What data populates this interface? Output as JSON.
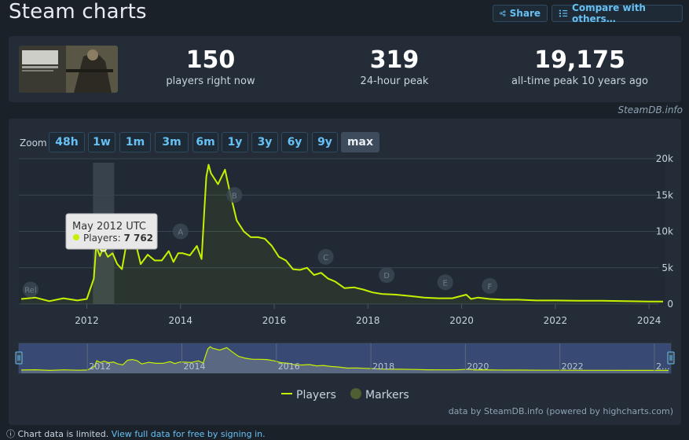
{
  "header": {
    "title": "Steam charts",
    "share_label": "Share",
    "compare_label": "Compare with others…"
  },
  "stats": {
    "current": {
      "value": "150",
      "label": "players right now"
    },
    "peak24": {
      "value": "319",
      "label": "24-hour peak"
    },
    "alltime": {
      "value": "19,175",
      "label": "all-time peak 10 years ago"
    }
  },
  "credit": "SteamDB.info",
  "zoom": {
    "label": "Zoom",
    "buttons": [
      "48h",
      "1w",
      "1m",
      "3m",
      "6m",
      "1y",
      "3y",
      "6y",
      "9y",
      "max"
    ],
    "active": "max"
  },
  "tooltip": {
    "title": "May 2012 UTC",
    "series_label": "Players: ",
    "value": "7 762"
  },
  "legend": {
    "players": "Players",
    "markers": "Markers"
  },
  "footer_credit": "data by SteamDB.info (powered by highcharts.com)",
  "bottom_note": {
    "prefix": "Chart data is limited.",
    "link": "View full data for free by signing in."
  },
  "colors": {
    "players": "#c6f000",
    "markers": "#4f5f31",
    "accent": "#66c0f4"
  },
  "chart_data": {
    "type": "line",
    "series": [
      {
        "name": "Players",
        "x": [
          2010.6,
          2010.9,
          2011.2,
          2011.5,
          2011.8,
          2012.0,
          2012.15,
          2012.2,
          2012.28,
          2012.35,
          2012.45,
          2012.55,
          2012.65,
          2012.75,
          2012.85,
          2012.95,
          2013.05,
          2013.15,
          2013.3,
          2013.45,
          2013.6,
          2013.75,
          2013.85,
          2013.95,
          2014.05,
          2014.2,
          2014.35,
          2014.45,
          2014.5,
          2014.55,
          2014.6,
          2014.65,
          2014.8,
          2014.95,
          2015.05,
          2015.2,
          2015.35,
          2015.5,
          2015.65,
          2015.8,
          2015.95,
          2016.1,
          2016.25,
          2016.4,
          2016.55,
          2016.7,
          2016.85,
          2017.0,
          2017.15,
          2017.3,
          2017.5,
          2017.7,
          2017.9,
          2018.1,
          2018.3,
          2018.6,
          2018.9,
          2019.2,
          2019.5,
          2019.8,
          2020.1,
          2020.2,
          2020.35,
          2020.6,
          2020.9,
          2021.2,
          2021.6,
          2022.0,
          2022.5,
          2023.0,
          2023.5,
          2024.0,
          2024.3
        ],
        "values": [
          700,
          900,
          400,
          800,
          500,
          700,
          3500,
          8000,
          6600,
          7762,
          6500,
          7000,
          5500,
          4800,
          8500,
          9000,
          8200,
          5500,
          6800,
          6000,
          6000,
          7300,
          5800,
          7000,
          7000,
          6700,
          8000,
          6200,
          12000,
          17500,
          19175,
          18000,
          16500,
          18500,
          15500,
          11500,
          10000,
          9200,
          9200,
          9000,
          8000,
          6500,
          6000,
          4800,
          4700,
          5000,
          4000,
          4300,
          3500,
          3100,
          2200,
          2300,
          2000,
          1600,
          1400,
          1300,
          1100,
          900,
          800,
          800,
          1300,
          700,
          900,
          700,
          600,
          600,
          500,
          500,
          450,
          450,
          400,
          350,
          350
        ]
      }
    ],
    "markers": [
      {
        "label": "Rel",
        "x": 2010.8,
        "y": 2000
      },
      {
        "label": "A",
        "x": 2014.0,
        "y": 10000
      },
      {
        "label": "B",
        "x": 2015.15,
        "y": 15000
      },
      {
        "label": "C",
        "x": 2017.1,
        "y": 6500
      },
      {
        "label": "D",
        "x": 2018.4,
        "y": 4000
      },
      {
        "label": "E",
        "x": 2019.65,
        "y": 3000
      },
      {
        "label": "F",
        "x": 2020.6,
        "y": 2500
      }
    ],
    "x_ticks": [
      "2012",
      "2014",
      "2016",
      "2018",
      "2020",
      "2022",
      "2024"
    ],
    "y_ticks": [
      "0",
      "5k",
      "10k",
      "15k",
      "20k"
    ],
    "xlim": [
      2010.55,
      2024.35
    ],
    "ylim": [
      0,
      20000
    ],
    "navigator_ticks": [
      "2012",
      "2014",
      "2016",
      "2018",
      "2020",
      "2022",
      "2…"
    ],
    "grid": true,
    "legend_position": "bottom"
  }
}
